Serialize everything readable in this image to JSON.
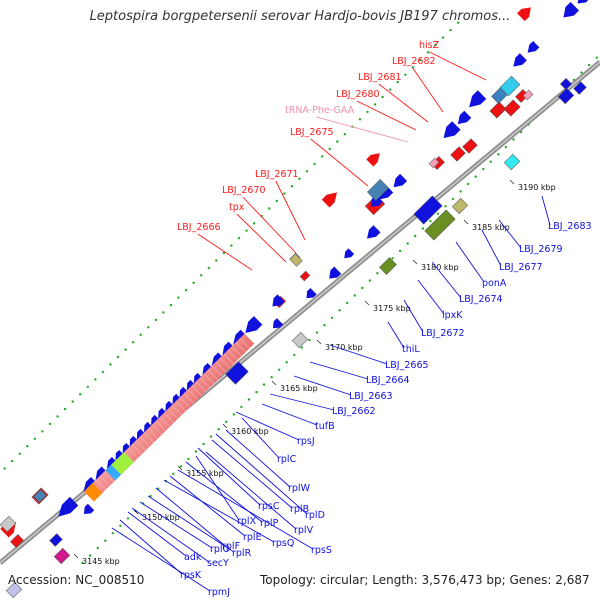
{
  "title": "Leptospira borgpetersenii serovar Hardjo-bovis JB197 chromos...",
  "footer": {
    "accession": "Accession: NC_008510",
    "summary": "Topology: circular; Length: 3,576,473 bp; Genes: 2,687"
  },
  "colors": {
    "backbone": "#999999",
    "forward_gene": "#ee1111",
    "reverse_gene": "#1111dd",
    "trna": "#f4a0b8",
    "grid_dots": "#22aa22",
    "ribosomal": "#f08080"
  },
  "ticks": [
    "3145 kbp",
    "3150 kbp",
    "3155 kbp",
    "3160 kbp",
    "3165 kbp",
    "3170 kbp",
    "3175 kbp",
    "3180 kbp",
    "3185 kbp",
    "3190 kbp"
  ],
  "forward_labels": [
    "hisZ",
    "LBJ_2682",
    "LBJ_2681",
    "LBJ_2680",
    "tRNA-Phe-GAA",
    "LBJ_2675",
    "LBJ_2671",
    "LBJ_2670",
    "tpx",
    "LBJ_2666"
  ],
  "reverse_labels": [
    "LBJ_2683",
    "LBJ_2679",
    "LBJ_2677",
    "ponA",
    "LBJ_2674",
    "lpxK",
    "LBJ_2672",
    "thiL",
    "LBJ_2665",
    "LBJ_2664",
    "LBJ_2663",
    "LBJ_2662",
    "tufB",
    "rpsJ",
    "rplC",
    "rplW",
    "rplD",
    "rplB",
    "rpsC",
    "rplV",
    "rplX",
    "rplP",
    "rpsS",
    "rplE",
    "rpsQ",
    "rplF",
    "rplR",
    "rplO",
    "secY",
    "adk",
    "rpsK",
    "rpmJ"
  ]
}
